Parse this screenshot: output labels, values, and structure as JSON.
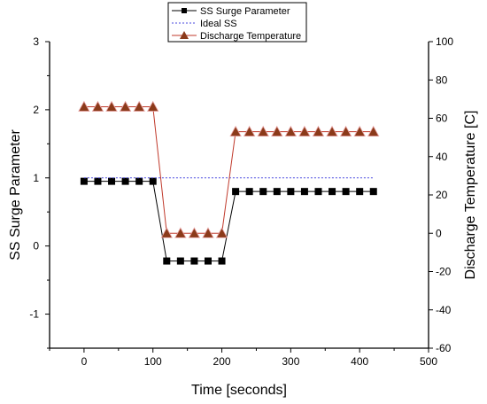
{
  "chart_data": {
    "type": "line",
    "title": "",
    "xlabel": "Time [seconds]",
    "ylabel": "SS Surge Parameter",
    "ylabel_right": "Discharge Temperature [C]",
    "xlim": [
      -50,
      500
    ],
    "ylim": [
      -1.5,
      3
    ],
    "ylim_right": [
      -60,
      100
    ],
    "x_ticks": [
      0,
      100,
      200,
      300,
      400,
      500
    ],
    "y_ticks": [
      -1,
      0,
      1,
      2,
      3
    ],
    "y_ticks_right": [
      -60,
      -40,
      -20,
      0,
      20,
      40,
      60,
      80,
      100
    ],
    "legend_position": "top-center",
    "series": [
      {
        "name": "SS Surge Parameter",
        "axis": "left",
        "color": "#000000",
        "marker": "square",
        "x": [
          0,
          20,
          40,
          60,
          80,
          100,
          120,
          140,
          160,
          180,
          200,
          220,
          240,
          260,
          280,
          300,
          320,
          340,
          360,
          380,
          400,
          420
        ],
        "y": [
          0.95,
          0.95,
          0.95,
          0.95,
          0.95,
          0.95,
          -0.22,
          -0.22,
          -0.22,
          -0.22,
          -0.22,
          0.8,
          0.8,
          0.8,
          0.8,
          0.8,
          0.8,
          0.8,
          0.8,
          0.8,
          0.8,
          0.8
        ]
      },
      {
        "name": "Ideal SS",
        "axis": "left",
        "color": "#4a4adf",
        "style": "dashed",
        "x": [
          0,
          420
        ],
        "y": [
          1,
          1
        ]
      },
      {
        "name": "Discharge Temperature",
        "axis": "right",
        "color": "#c0392b",
        "marker_color": "#8b3a1a",
        "marker": "triangle",
        "x": [
          0,
          20,
          40,
          60,
          80,
          100,
          120,
          140,
          160,
          180,
          200,
          220,
          240,
          260,
          280,
          300,
          320,
          340,
          360,
          380,
          400,
          420
        ],
        "y": [
          66,
          66,
          66,
          66,
          66,
          66,
          0,
          0,
          0,
          0,
          0,
          53,
          53,
          53,
          53,
          53,
          53,
          53,
          53,
          53,
          53,
          53
        ]
      }
    ]
  }
}
